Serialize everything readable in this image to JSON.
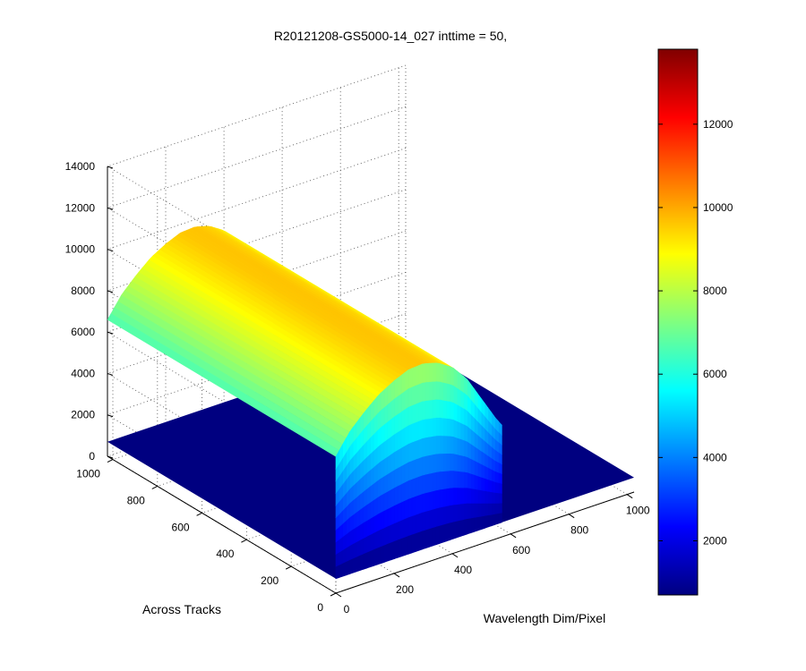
{
  "chart_data": {
    "type": "surface",
    "title": "R20121208-GS5000-14_027 inttime = 50,",
    "xlabel": "Wavelength Dim/Pixel",
    "ylabel": "Across Tracks",
    "zlabel": "",
    "xlim": [
      0,
      1024
    ],
    "ylim": [
      0,
      1024
    ],
    "zlim": [
      0,
      14000
    ],
    "x_ticks": [
      "0",
      "200",
      "400",
      "600",
      "800",
      "1000"
    ],
    "y_ticks": [
      "0",
      "200",
      "400",
      "600",
      "800",
      "1000"
    ],
    "z_ticks": [
      "0",
      "2000",
      "4000",
      "6000",
      "8000",
      "10000",
      "12000",
      "14000"
    ],
    "grid": true,
    "colormap": "jet",
    "colorbar": {
      "range": [
        700,
        13800
      ],
      "ticks": [
        "2000",
        "4000",
        "6000",
        "8000",
        "10000",
        "12000"
      ]
    },
    "surface": {
      "baseline": 700,
      "illuminated_wavelength_range": [
        0,
        570
      ],
      "illuminated_track_range": [
        0,
        1024
      ],
      "peak_value": 9700,
      "peak_at_wavelength": 280,
      "profile_along_wavelength": [
        {
          "x": 0,
          "z": 6600
        },
        {
          "x": 50,
          "z": 7600
        },
        {
          "x": 100,
          "z": 8300
        },
        {
          "x": 150,
          "z": 8900
        },
        {
          "x": 200,
          "z": 9300
        },
        {
          "x": 250,
          "z": 9600
        },
        {
          "x": 300,
          "z": 9650
        },
        {
          "x": 350,
          "z": 9450
        },
        {
          "x": 400,
          "z": 9000
        },
        {
          "x": 450,
          "z": 8200
        },
        {
          "x": 500,
          "z": 7000
        },
        {
          "x": 550,
          "z": 5800
        },
        {
          "x": 570,
          "z": 5400
        }
      ]
    }
  }
}
